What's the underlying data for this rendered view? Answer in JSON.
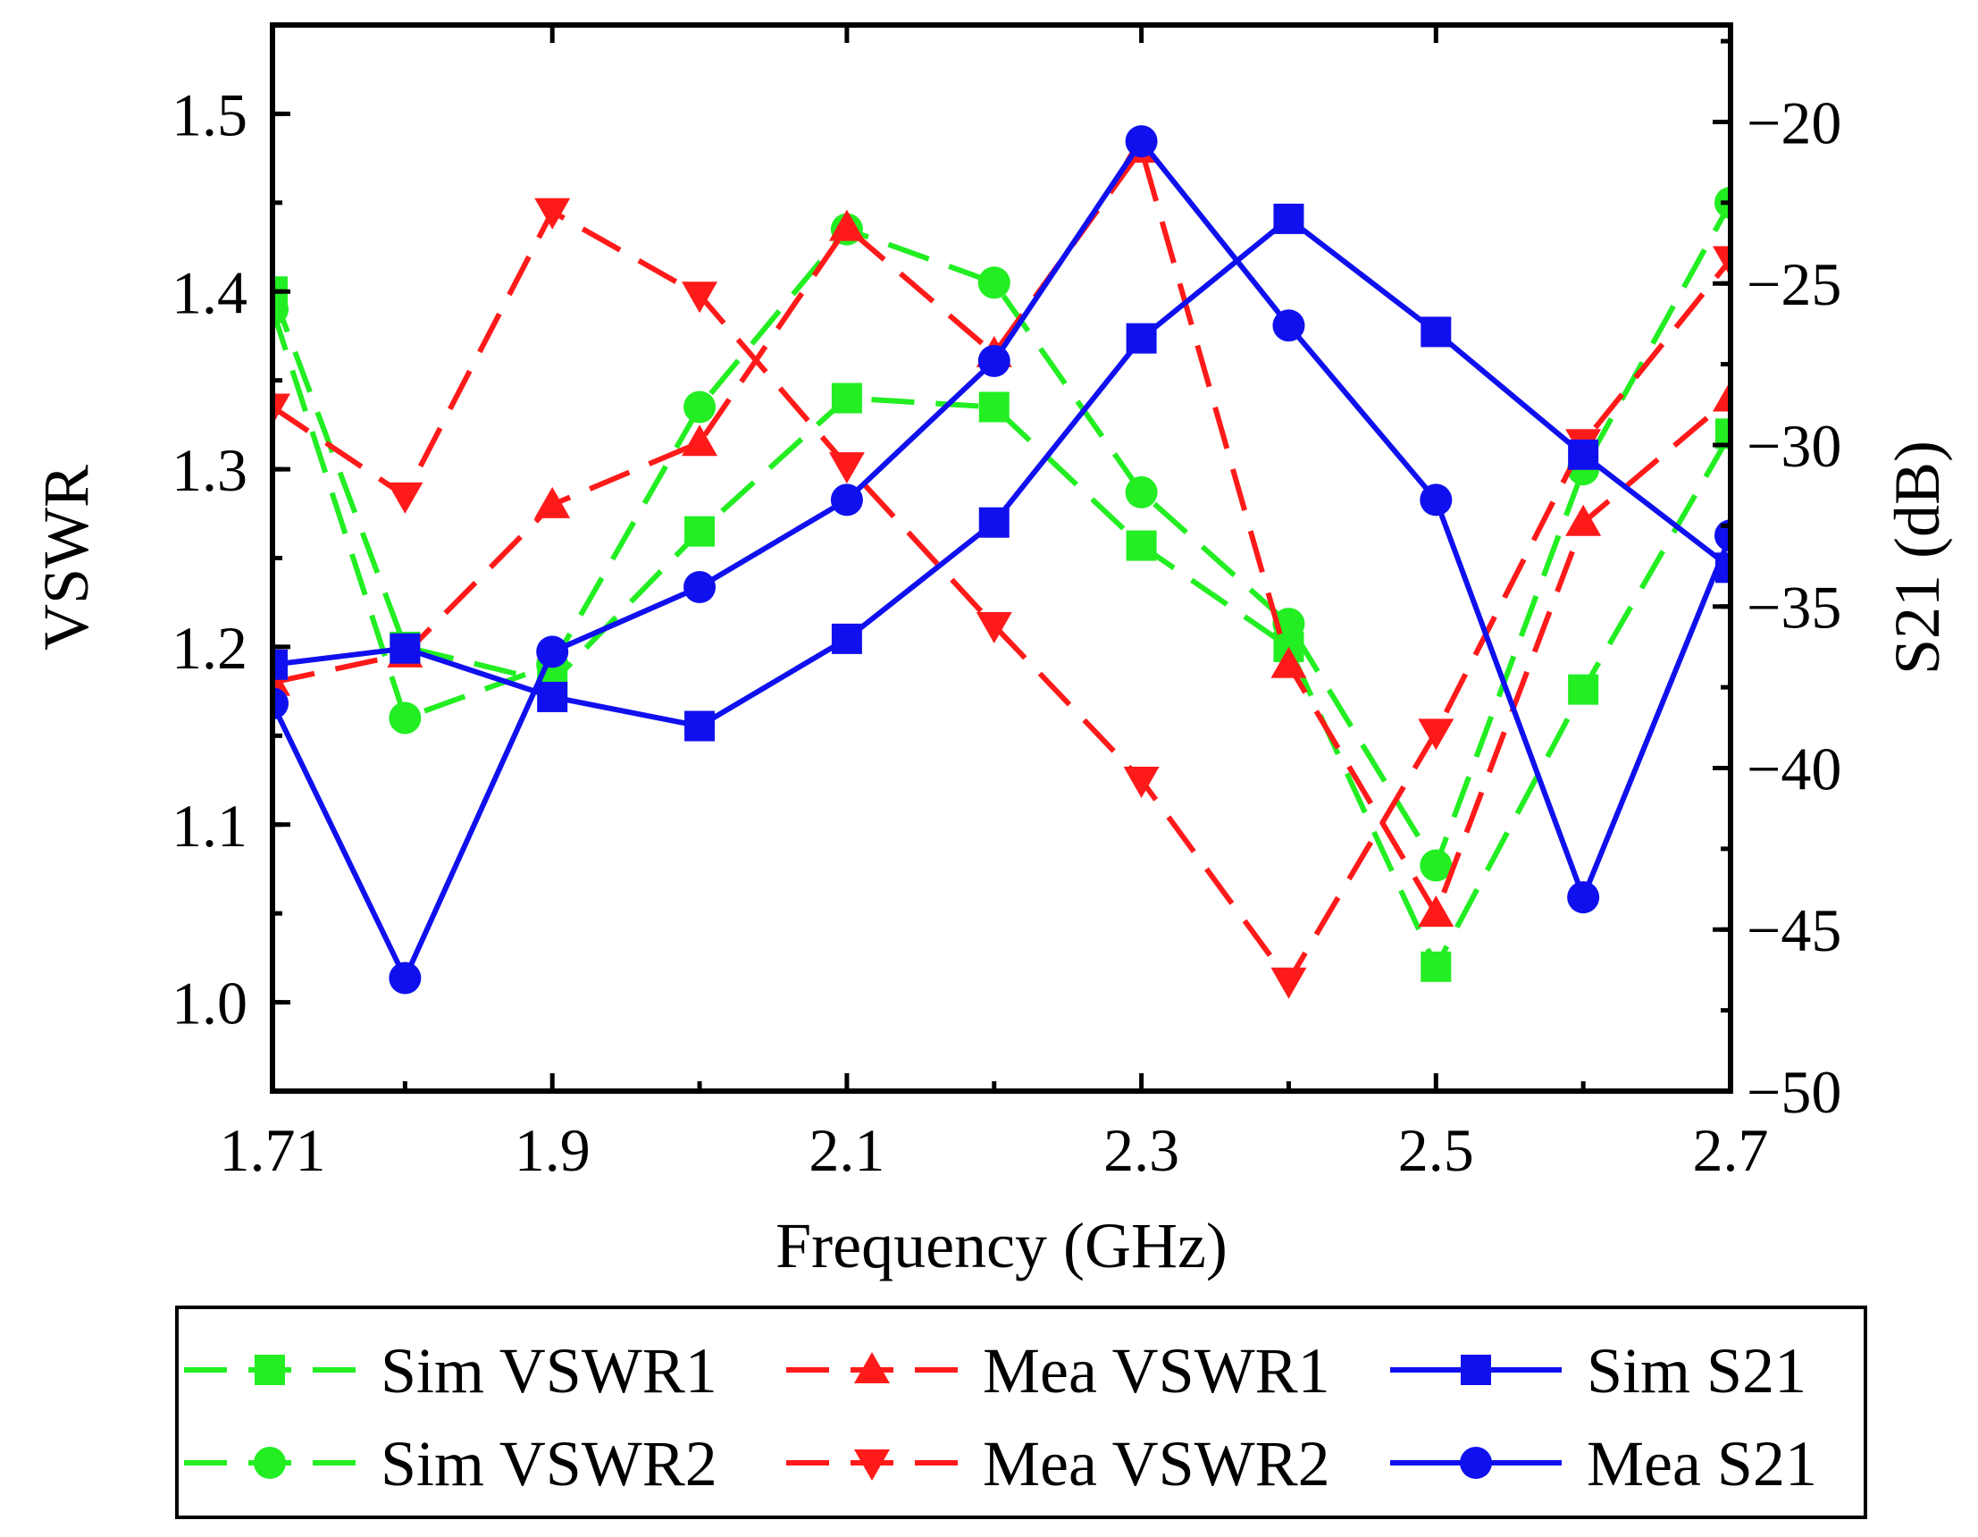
{
  "chart_data": {
    "type": "line",
    "xlabel": "Frequency (GHz)",
    "ylabel_left": "VSWR",
    "ylabel_right": "S21 (dB)",
    "xlim": [
      1.71,
      2.7
    ],
    "ylim_left": [
      0.95,
      1.55
    ],
    "ylim_right": [
      -50,
      -17
    ],
    "x_ticks": [
      1.71,
      1.9,
      2.1,
      2.3,
      2.5,
      2.7
    ],
    "x_tick_labels": [
      "1.71",
      "1.9",
      "2.1",
      "2.3",
      "2.5",
      "2.7"
    ],
    "y_left_ticks": [
      1.0,
      1.1,
      1.2,
      1.3,
      1.4,
      1.5
    ],
    "y_left_tick_labels": [
      "1.0",
      "1.1",
      "1.2",
      "1.3",
      "1.4",
      "1.5"
    ],
    "y_right_ticks": [
      -50,
      -45,
      -40,
      -35,
      -30,
      -25,
      -20
    ],
    "y_right_tick_labels": [
      "−50",
      "−45",
      "−40",
      "−35",
      "−30",
      "−25",
      "−20"
    ],
    "x": [
      1.71,
      1.8,
      1.9,
      2.0,
      2.1,
      2.2,
      2.3,
      2.4,
      2.5,
      2.6,
      2.7
    ],
    "series": [
      {
        "name": "Sim VSWR1",
        "axis": "left",
        "color": "#22ee22",
        "dash": true,
        "marker": "square",
        "values": [
          1.4,
          1.2,
          1.18,
          1.265,
          1.34,
          1.335,
          1.257,
          1.2,
          1.02,
          1.176,
          1.32
        ]
      },
      {
        "name": "Sim VSWR2",
        "axis": "left",
        "color": "#22ee22",
        "dash": true,
        "marker": "circle",
        "values": [
          1.39,
          1.16,
          1.19,
          1.335,
          1.435,
          1.405,
          1.287,
          1.213,
          1.077,
          1.3,
          1.45
        ]
      },
      {
        "name": "Mea VSWR1",
        "axis": "left",
        "color": "#ff1a1a",
        "dash": true,
        "marker": "triangle-up",
        "values": [
          1.18,
          1.196,
          1.28,
          1.315,
          1.436,
          1.365,
          1.48,
          1.19,
          1.05,
          1.27,
          1.34
        ]
      },
      {
        "name": "Mea VSWR2",
        "axis": "left",
        "color": "#ff1a1a",
        "dash": true,
        "marker": "triangle-down",
        "values": [
          1.335,
          1.285,
          1.445,
          1.398,
          1.302,
          1.212,
          1.125,
          1.012,
          1.152,
          1.315,
          1.418
        ]
      },
      {
        "name": "Sim S21",
        "axis": "right",
        "color": "#1010ee",
        "dash": false,
        "marker": "square",
        "values": [
          -36.8,
          -36.3,
          -37.8,
          -38.7,
          -36.0,
          -32.4,
          -26.7,
          -23.0,
          -26.5,
          -30.3,
          -33.8
        ]
      },
      {
        "name": "Mea S21",
        "axis": "right",
        "color": "#1010ee",
        "dash": false,
        "marker": "circle",
        "values": [
          -38.0,
          -46.5,
          -36.4,
          -34.4,
          -31.7,
          -27.4,
          -20.6,
          -26.3,
          -31.7,
          -44.0,
          -32.8
        ]
      }
    ],
    "legend": {
      "placement": "bottom",
      "rows": [
        [
          "Sim VSWR1",
          "Mea VSWR1",
          "Sim S21"
        ],
        [
          "Sim VSWR2",
          "Mea VSWR2",
          "Mea S21"
        ]
      ]
    }
  }
}
